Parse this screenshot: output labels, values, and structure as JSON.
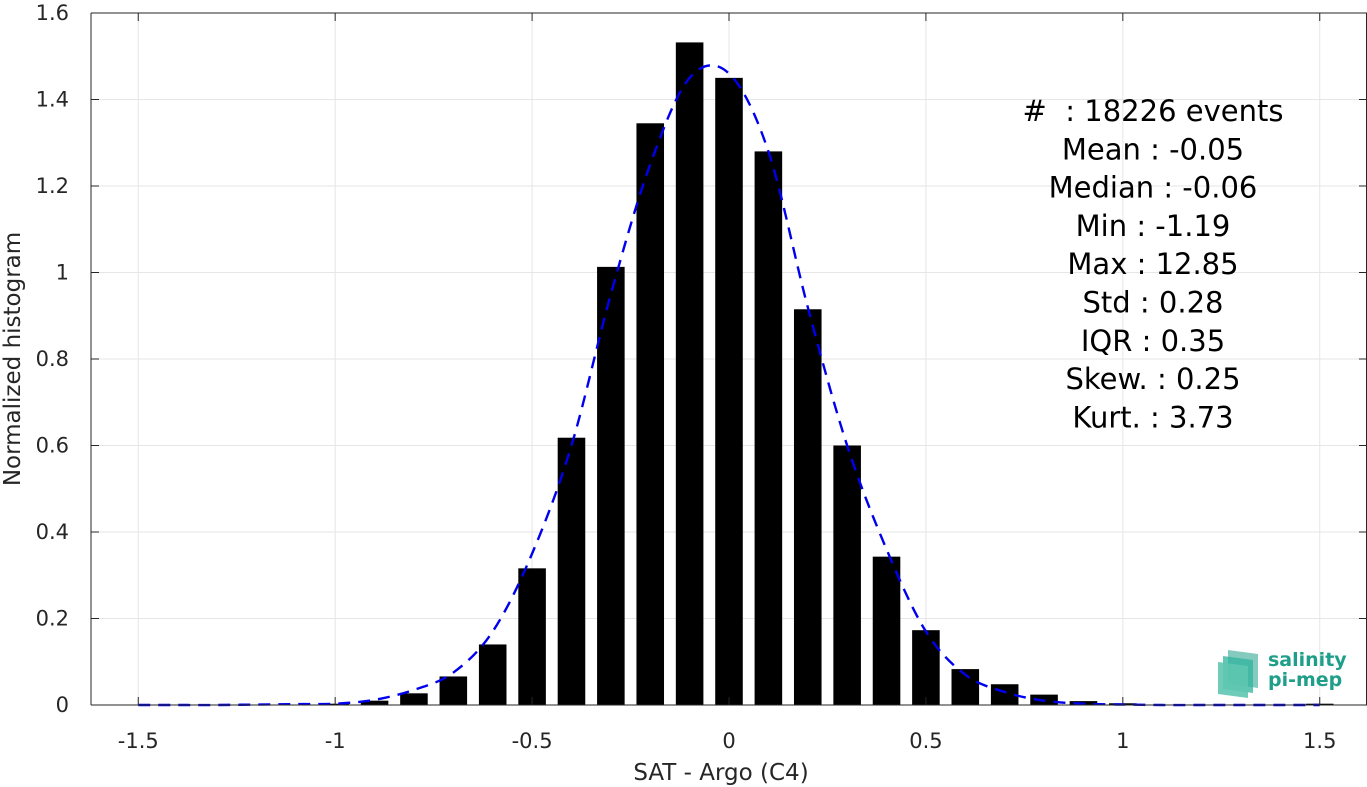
{
  "chart_data": {
    "type": "bar",
    "xlabel": "SAT - Argo (C4)",
    "ylabel": "Normalized histogram",
    "xlim": [
      -1.62,
      1.62
    ],
    "ylim": [
      0,
      1.6
    ],
    "xticks": [
      -1.5,
      -1,
      -0.5,
      0,
      0.5,
      1,
      1.5
    ],
    "xtick_labels": [
      "-1.5",
      "-1",
      "-0.5",
      "0",
      "0.5",
      "1",
      "1.5"
    ],
    "yticks": [
      0,
      0.2,
      0.4,
      0.6,
      0.8,
      1,
      1.2,
      1.4,
      1.6
    ],
    "ytick_labels": [
      "0",
      "0.2",
      "0.4",
      "0.6",
      "0.8",
      "1",
      "1.2",
      "1.4",
      "1.6"
    ],
    "grid": true,
    "bar_width": 0.07,
    "bars": [
      {
        "x": -1.0,
        "y": 0.003
      },
      {
        "x": -0.9,
        "y": 0.01
      },
      {
        "x": -0.8,
        "y": 0.027
      },
      {
        "x": -0.7,
        "y": 0.066
      },
      {
        "x": -0.6,
        "y": 0.14
      },
      {
        "x": -0.5,
        "y": 0.316
      },
      {
        "x": -0.4,
        "y": 0.618
      },
      {
        "x": -0.3,
        "y": 1.013
      },
      {
        "x": -0.2,
        "y": 1.345
      },
      {
        "x": -0.1,
        "y": 1.532
      },
      {
        "x": 0.0,
        "y": 1.45
      },
      {
        "x": 0.1,
        "y": 1.28
      },
      {
        "x": 0.2,
        "y": 0.915
      },
      {
        "x": 0.3,
        "y": 0.6
      },
      {
        "x": 0.4,
        "y": 0.343
      },
      {
        "x": 0.5,
        "y": 0.173
      },
      {
        "x": 0.6,
        "y": 0.083
      },
      {
        "x": 0.7,
        "y": 0.048
      },
      {
        "x": 0.8,
        "y": 0.024
      },
      {
        "x": 0.9,
        "y": 0.009
      },
      {
        "x": 1.0,
        "y": 0.004
      },
      {
        "x": 1.5,
        "y": 0.003
      }
    ],
    "fit_curve": {
      "style": "dashed",
      "color": "#0000ee",
      "points": [
        [
          -1.5,
          0.0
        ],
        [
          -1.4,
          0.0
        ],
        [
          -1.3,
          0.0
        ],
        [
          -1.2,
          0.001
        ],
        [
          -1.1,
          0.002
        ],
        [
          -1.0,
          0.003
        ],
        [
          -0.9,
          0.012
        ],
        [
          -0.8,
          0.035
        ],
        [
          -0.7,
          0.075
        ],
        [
          -0.6,
          0.17
        ],
        [
          -0.5,
          0.35
        ],
        [
          -0.4,
          0.6
        ],
        [
          -0.3,
          0.95
        ],
        [
          -0.2,
          1.25
        ],
        [
          -0.1,
          1.45
        ],
        [
          0.0,
          1.46
        ],
        [
          0.1,
          1.28
        ],
        [
          0.2,
          0.92
        ],
        [
          0.3,
          0.6
        ],
        [
          0.4,
          0.36
        ],
        [
          0.5,
          0.17
        ],
        [
          0.6,
          0.07
        ],
        [
          0.7,
          0.03
        ],
        [
          0.8,
          0.01
        ],
        [
          0.9,
          0.003
        ],
        [
          1.0,
          0.001
        ],
        [
          1.1,
          0.0
        ],
        [
          1.2,
          0.0
        ],
        [
          1.3,
          0.0
        ],
        [
          1.4,
          0.0
        ],
        [
          1.5,
          0.0
        ]
      ]
    },
    "annotations": [
      "#  : 18226 events",
      "Mean : -0.05",
      "Median : -0.06",
      "Min : -1.19",
      "Max : 12.85",
      "Std : 0.28",
      "IQR : 0.35",
      "Skew. : 0.25",
      "Kurt. : 3.73"
    ]
  },
  "logo": {
    "line1": "salinity",
    "line2": "pi-mep"
  },
  "colors": {
    "bars": "#000000",
    "fit": "#0000ee",
    "grid": "#e6e6e6",
    "axis": "#262626",
    "logo": "#1f9e8a"
  }
}
